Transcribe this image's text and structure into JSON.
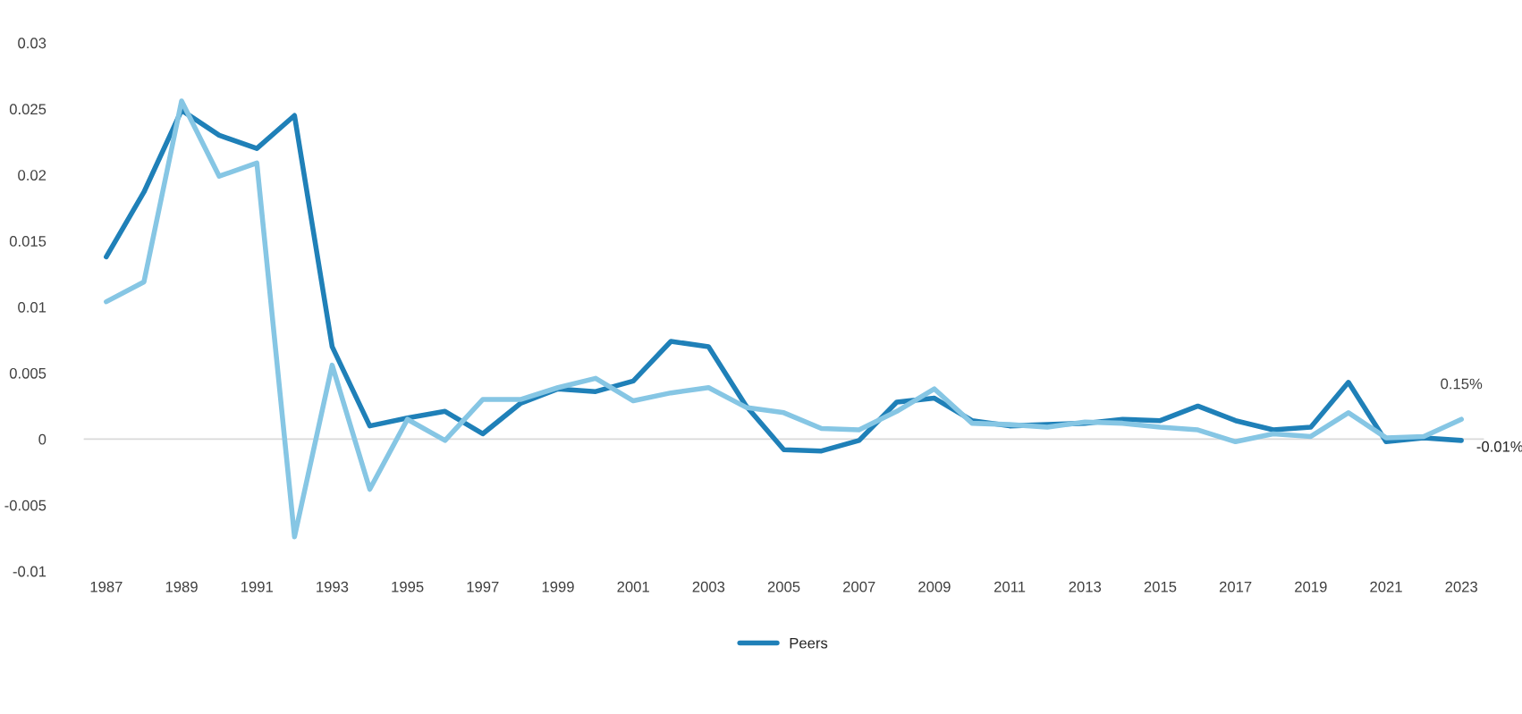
{
  "chart_data": {
    "type": "line",
    "categories": [
      "1987",
      null,
      "1989",
      null,
      "1991",
      null,
      "1993",
      null,
      "1995",
      null,
      "1997",
      null,
      "1999",
      null,
      "2001",
      null,
      "2003",
      null,
      "2005",
      null,
      "2007",
      null,
      "2009",
      null,
      "2011",
      null,
      "2013",
      null,
      "2015",
      null,
      "2017",
      null,
      "2019",
      null,
      "2021",
      null,
      "2023"
    ],
    "series": [
      {
        "name": "Peers",
        "color": "#1f80b8",
        "values": [
          0.0138,
          0.0187,
          0.0249,
          0.023,
          0.022,
          0.0245,
          0.007,
          0.001,
          0.0016,
          0.0021,
          0.0004,
          0.0027,
          0.0038,
          0.0036,
          0.0044,
          0.0074,
          0.007,
          0.0025,
          -0.0008,
          -0.0009,
          -0.0001,
          0.0028,
          0.0031,
          0.0014,
          0.001,
          0.0011,
          0.0012,
          0.0015,
          0.0014,
          0.0025,
          0.0014,
          0.0007,
          0.0009,
          0.0043,
          -0.0002,
          0.0001,
          -0.0001
        ]
      },
      {
        "color": "#86c6e4",
        "values": [
          0.0104,
          0.0119,
          0.0256,
          0.0199,
          0.0209,
          -0.0074,
          0.0056,
          -0.0038,
          0.0015,
          -0.0001,
          0.003,
          0.003,
          0.0039,
          0.0046,
          0.0029,
          0.0035,
          0.0039,
          0.0024,
          0.002,
          0.0008,
          0.0007,
          0.0021,
          0.0038,
          0.0012,
          0.0011,
          0.0009,
          0.0013,
          0.0012,
          0.0009,
          0.0007,
          -0.0002,
          0.0004,
          0.0002,
          0.002,
          0.0001,
          0.0002,
          0.0015
        ]
      }
    ],
    "ylim": [
      -0.01,
      0.03
    ],
    "yticks": [
      -0.01,
      -0.005,
      0,
      0.005,
      0.01,
      0.015,
      0.02,
      0.025,
      0.03
    ],
    "ref_lines": [
      {
        "axis": "y",
        "value": 0,
        "color": "#d9d9d9"
      }
    ],
    "annotations": [
      {
        "text": "0.15%",
        "x": "2023",
        "y": 0.0015
      },
      {
        "text": "-0.01%",
        "x": "2023",
        "y": -0.0001
      }
    ],
    "grid": false,
    "legend": "bottom",
    "marker": "none",
    "line_style": "solid"
  }
}
